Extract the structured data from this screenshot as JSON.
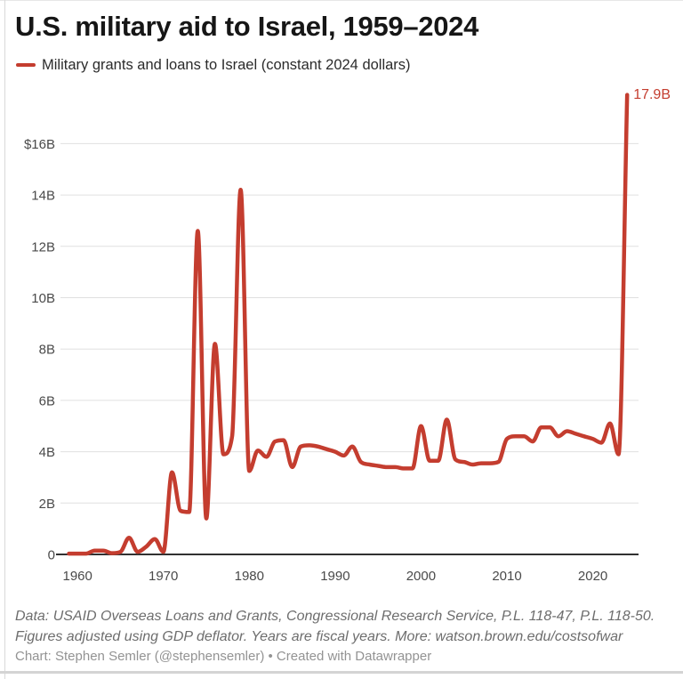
{
  "title": "U.S. military aid to Israel, 1959–2024",
  "legend": {
    "label": "Military grants and loans to Israel (constant 2024 dollars)"
  },
  "colors": {
    "line": "#c43d2f",
    "grid": "#e0e0e0",
    "baseline": "#313131",
    "axis_text": "#4a4a4a",
    "annotation_text": "#c43d2f"
  },
  "chart_data": {
    "type": "line",
    "title": "U.S. military aid to Israel, 1959–2024",
    "series_name": "Military grants and loans to Israel (constant 2024 dollars)",
    "unit": "billions of constant 2024 US dollars",
    "x": [
      1959,
      1960,
      1961,
      1962,
      1963,
      1964,
      1965,
      1966,
      1967,
      1968,
      1969,
      1970,
      1971,
      1972,
      1973,
      1974,
      1975,
      1976,
      1977,
      1978,
      1979,
      1980,
      1981,
      1982,
      1983,
      1984,
      1985,
      1986,
      1987,
      1988,
      1989,
      1990,
      1991,
      1992,
      1993,
      1994,
      1995,
      1996,
      1997,
      1998,
      1999,
      2000,
      2001,
      2002,
      2003,
      2004,
      2005,
      2006,
      2007,
      2008,
      2009,
      2010,
      2011,
      2012,
      2013,
      2014,
      2015,
      2016,
      2017,
      2018,
      2019,
      2020,
      2021,
      2022,
      2023,
      2024
    ],
    "values": [
      0.03,
      0.03,
      0.03,
      0.15,
      0.15,
      0.05,
      0.1,
      0.65,
      0.1,
      0.3,
      0.6,
      0.1,
      3.2,
      1.7,
      1.65,
      12.6,
      1.4,
      8.2,
      3.9,
      4.6,
      14.2,
      3.25,
      4.05,
      3.8,
      4.4,
      4.45,
      3.4,
      4.2,
      4.25,
      4.2,
      4.1,
      4.0,
      3.85,
      4.2,
      3.6,
      3.5,
      3.45,
      3.4,
      3.4,
      3.35,
      3.35,
      5.0,
      3.65,
      3.65,
      5.25,
      3.7,
      3.6,
      3.5,
      3.55,
      3.55,
      3.6,
      4.5,
      4.6,
      4.6,
      4.4,
      4.95,
      4.95,
      4.6,
      4.8,
      4.7,
      4.6,
      4.5,
      4.35,
      5.1,
      3.9,
      17.9
    ],
    "xlim": [
      1959,
      2024
    ],
    "ylim": [
      0,
      18
    ],
    "grid": "horizontal",
    "legend_position": "top-left",
    "yticks": [
      {
        "value": 16,
        "label": "$16B"
      },
      {
        "value": 14,
        "label": "14B"
      },
      {
        "value": 12,
        "label": "12B"
      },
      {
        "value": 10,
        "label": "10B"
      },
      {
        "value": 8,
        "label": "8B"
      },
      {
        "value": 6,
        "label": "6B"
      },
      {
        "value": 4,
        "label": "4B"
      },
      {
        "value": 2,
        "label": "2B"
      },
      {
        "value": 0,
        "label": "0"
      }
    ],
    "xticks": [
      {
        "value": 1960,
        "label": "1960"
      },
      {
        "value": 1970,
        "label": "1970"
      },
      {
        "value": 1980,
        "label": "1980"
      },
      {
        "value": 1990,
        "label": "1990"
      },
      {
        "value": 2000,
        "label": "2000"
      },
      {
        "value": 2010,
        "label": "2010"
      },
      {
        "value": 2020,
        "label": "2020"
      }
    ],
    "annotation": {
      "x": 2024,
      "y": 17.9,
      "label": "17.9B"
    }
  },
  "footer": {
    "source_line1": "Data: USAID Overseas Loans and Grants, Congressional Research Service, P.L. 118-47, P.L. 118-50.",
    "source_line2": "Figures adjusted using GDP deflator. Years are fiscal years. More: watson.brown.edu/costsofwar",
    "credit": "Chart: Stephen Semler (@stephensemler) • Created with Datawrapper"
  }
}
